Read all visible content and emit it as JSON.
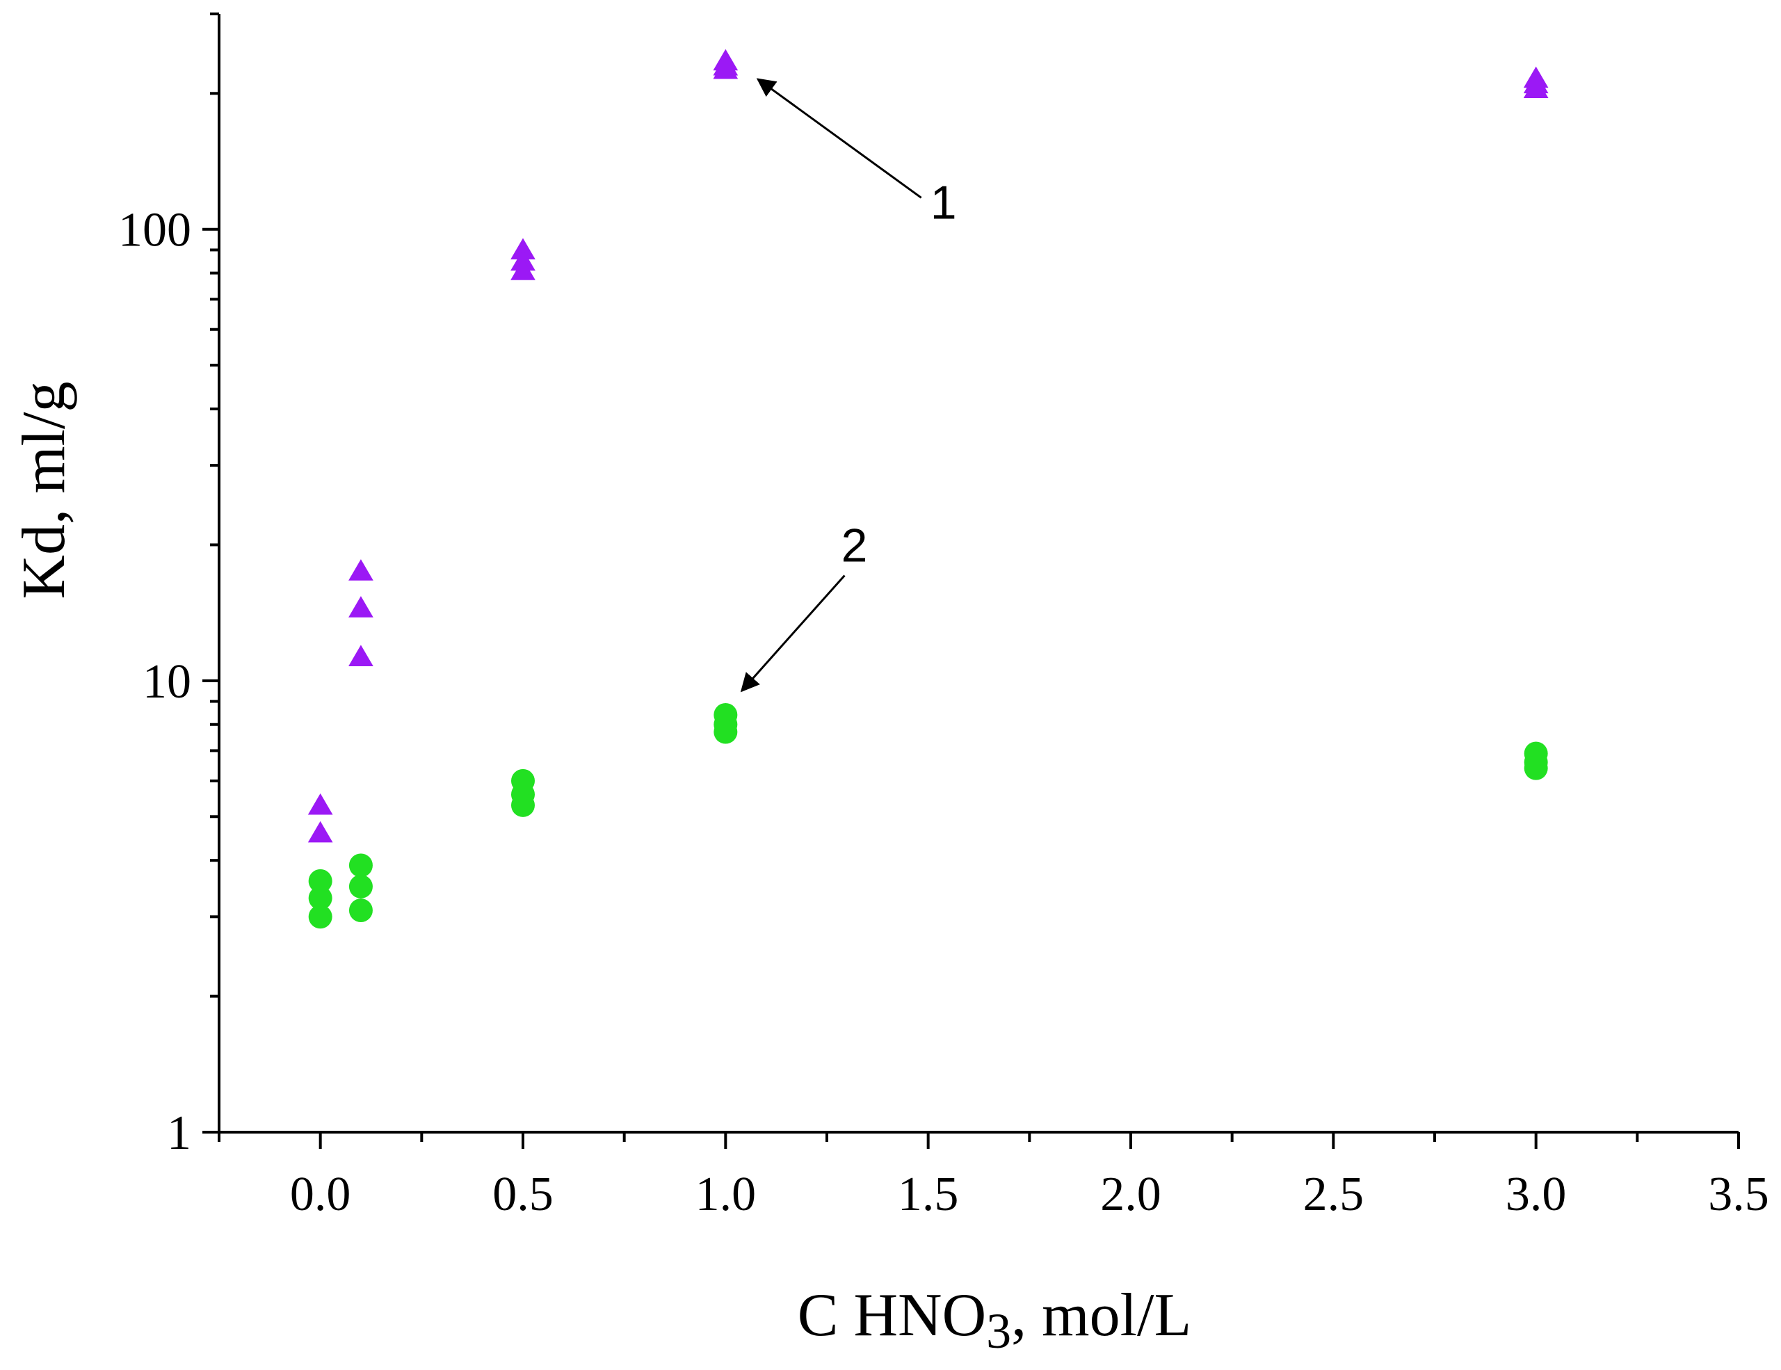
{
  "chart_data": {
    "type": "scatter",
    "title": "",
    "xlabel": {
      "prefix": "C HNO",
      "subscript": "3",
      "suffix": ", mol/L"
    },
    "ylabel": "Kd, ml/g",
    "xlim": [
      -0.25,
      3.5
    ],
    "ylim": [
      1,
      300
    ],
    "yscale": "log",
    "grid": false,
    "legend": "none",
    "x_major_ticks": [
      0.0,
      0.5,
      1.0,
      1.5,
      2.0,
      2.5,
      3.0,
      3.5
    ],
    "x_tick_labels": [
      "0.0",
      "0.5",
      "1.0",
      "1.5",
      "2.0",
      "2.5",
      "3.0",
      "3.5"
    ],
    "x_minor_ticks": [
      -0.25,
      0.25,
      0.75,
      1.25,
      1.75,
      2.25,
      2.75,
      3.25
    ],
    "y_major_ticks": [
      1,
      10,
      100
    ],
    "y_tick_labels": [
      "1",
      "10",
      "100"
    ],
    "series": [
      {
        "name": "1",
        "marker": "triangle",
        "color": "#9B19F5",
        "points": [
          {
            "x": 0.0,
            "y": 5.3
          },
          {
            "x": 0.0,
            "y": 4.6
          },
          {
            "x": 0.1,
            "y": 17.5
          },
          {
            "x": 0.1,
            "y": 14.5
          },
          {
            "x": 0.1,
            "y": 11.3
          },
          {
            "x": 0.5,
            "y": 90
          },
          {
            "x": 0.5,
            "y": 85
          },
          {
            "x": 0.5,
            "y": 81
          },
          {
            "x": 1.0,
            "y": 236
          },
          {
            "x": 1.0,
            "y": 230
          },
          {
            "x": 1.0,
            "y": 226
          },
          {
            "x": 3.0,
            "y": 216
          },
          {
            "x": 3.0,
            "y": 210
          },
          {
            "x": 3.0,
            "y": 205
          }
        ]
      },
      {
        "name": "2",
        "marker": "circle",
        "color": "#22E022",
        "points": [
          {
            "x": 0.0,
            "y": 3.6
          },
          {
            "x": 0.0,
            "y": 3.3
          },
          {
            "x": 0.0,
            "y": 3.0
          },
          {
            "x": 0.1,
            "y": 3.9
          },
          {
            "x": 0.1,
            "y": 3.5
          },
          {
            "x": 0.1,
            "y": 3.1
          },
          {
            "x": 0.5,
            "y": 6.0
          },
          {
            "x": 0.5,
            "y": 5.6
          },
          {
            "x": 0.5,
            "y": 5.3
          },
          {
            "x": 1.0,
            "y": 8.4
          },
          {
            "x": 1.0,
            "y": 8.0
          },
          {
            "x": 1.0,
            "y": 7.7
          },
          {
            "x": 3.0,
            "y": 6.9
          },
          {
            "x": 3.0,
            "y": 6.6
          },
          {
            "x": 3.0,
            "y": 6.4
          }
        ]
      }
    ],
    "annotations": [
      {
        "text": "1",
        "series": "1",
        "target": {
          "x": 1.08,
          "y": 215
        },
        "label_at": {
          "x": 1.5,
          "y": 115
        }
      },
      {
        "text": "2",
        "series": "2",
        "target": {
          "x": 1.04,
          "y": 9.5
        },
        "label_at": {
          "x": 1.28,
          "y": 20
        }
      }
    ]
  }
}
